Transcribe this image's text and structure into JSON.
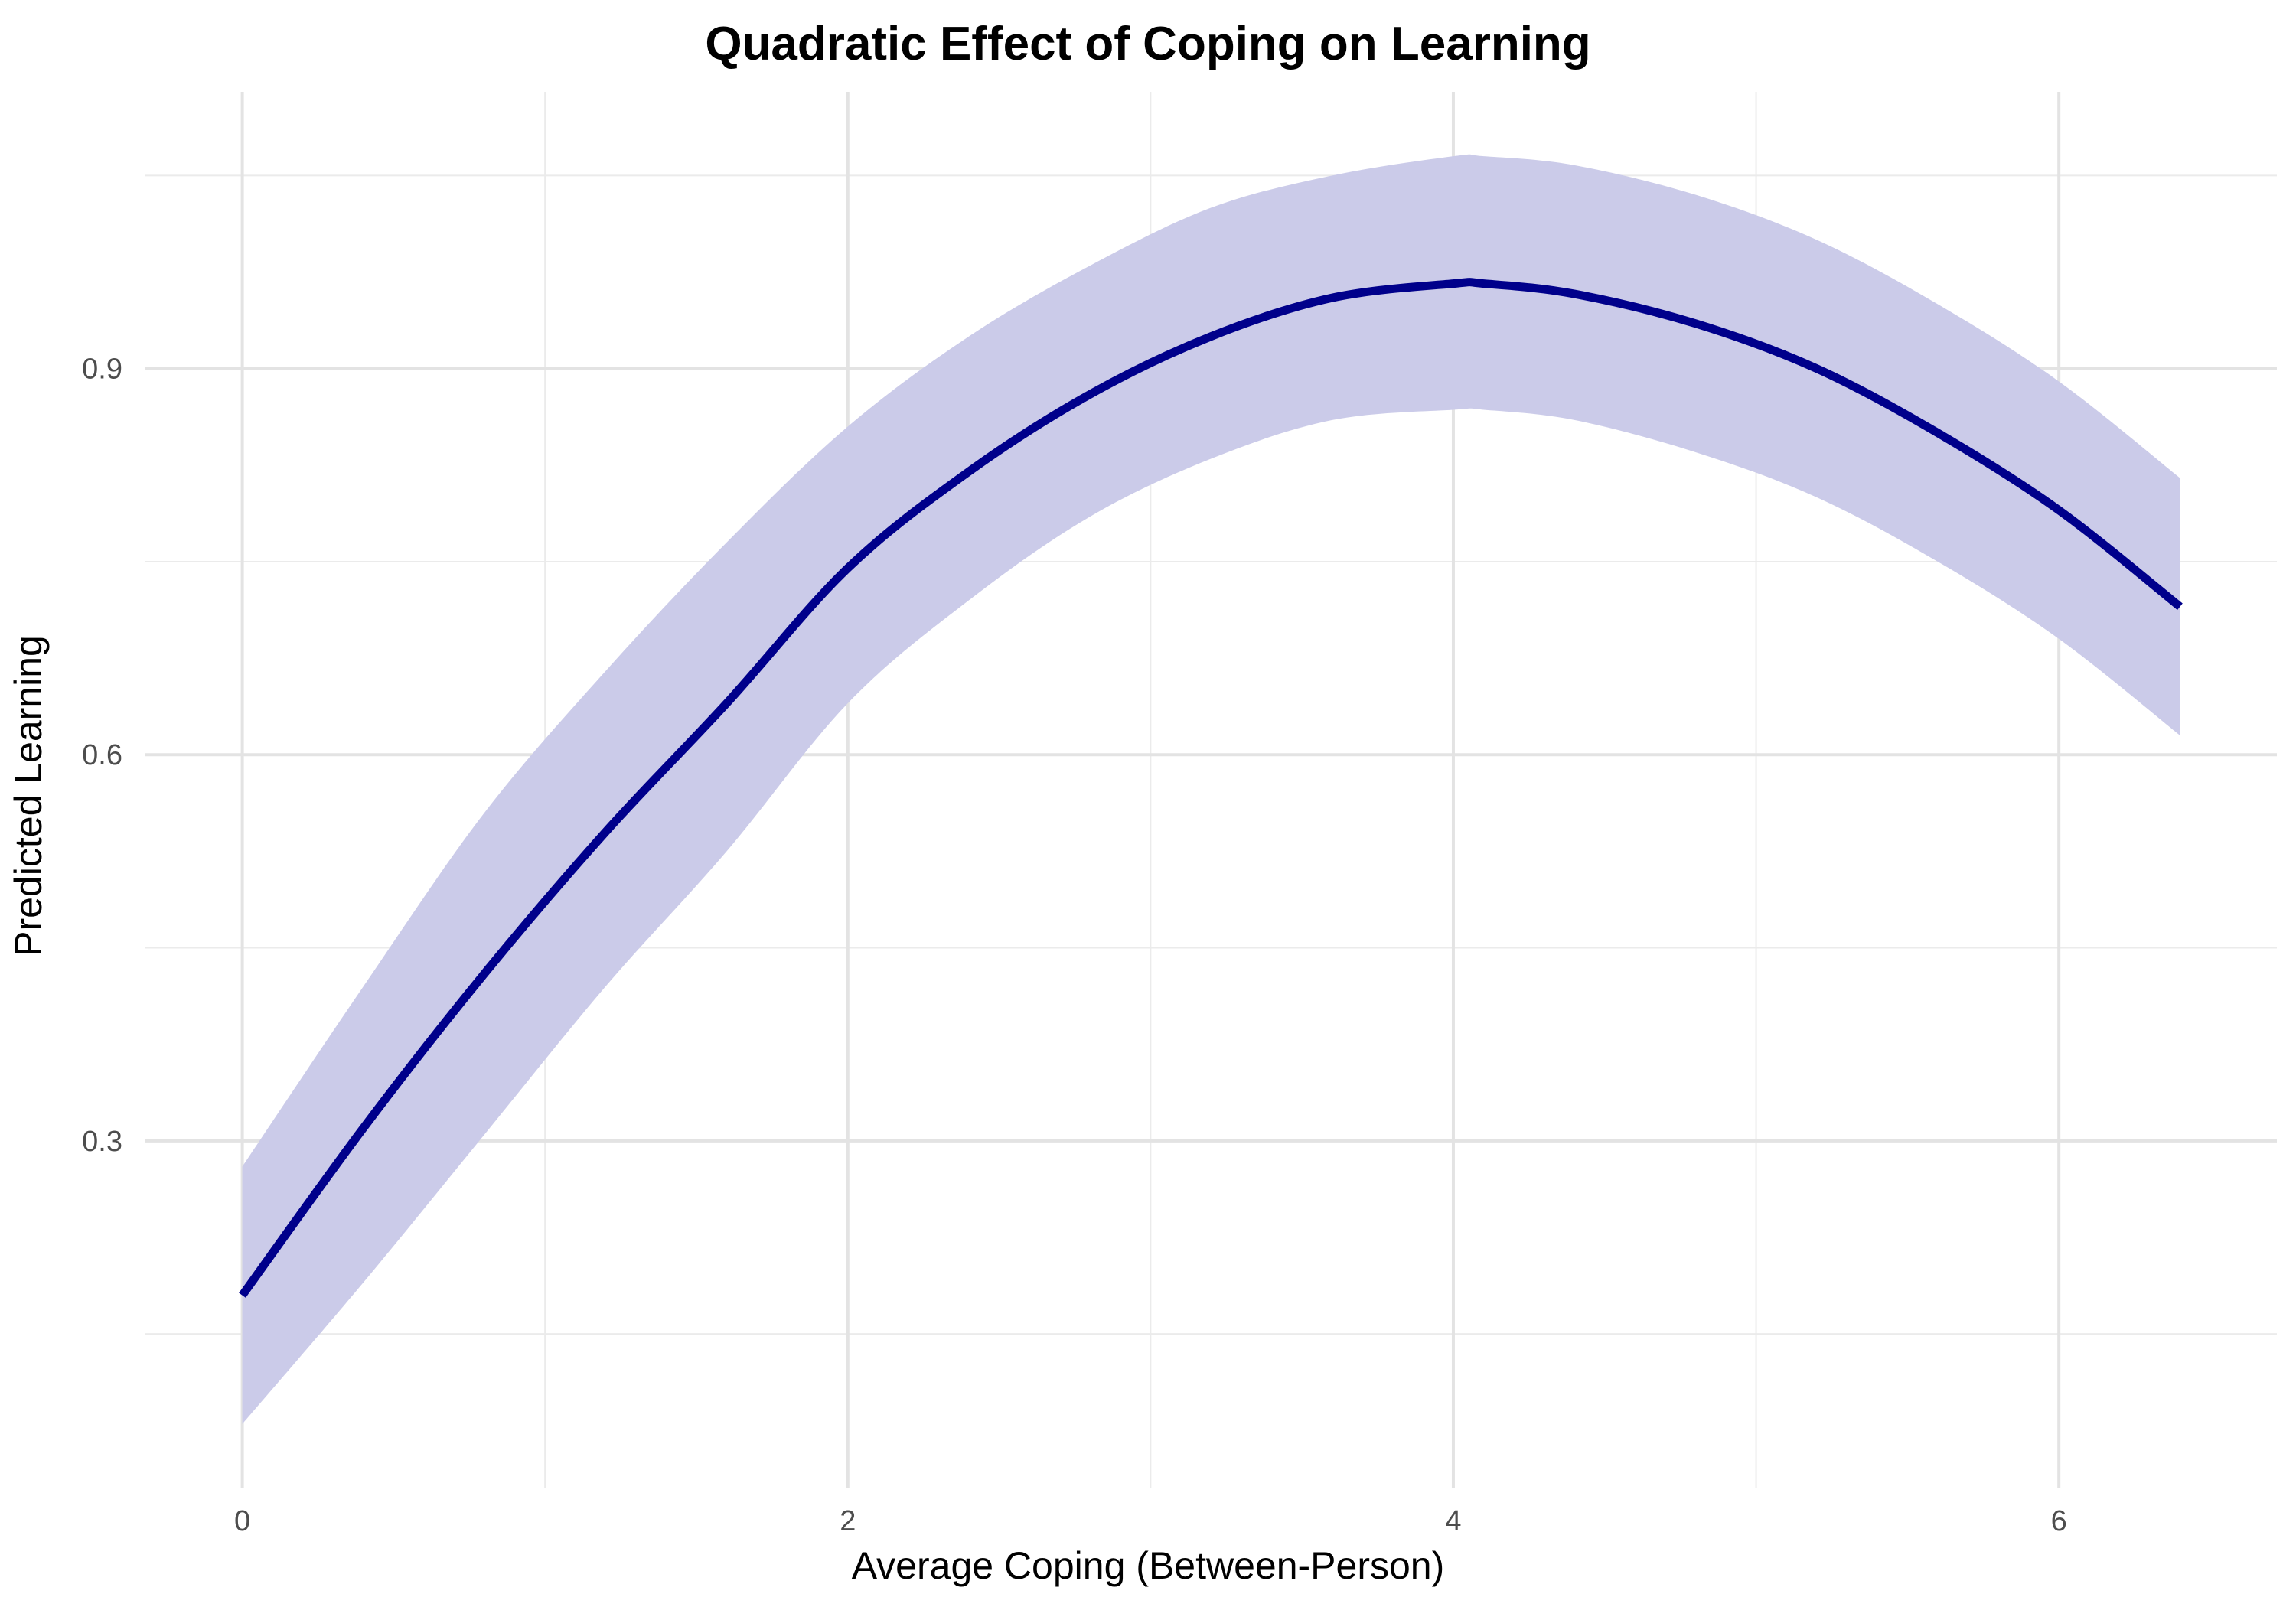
{
  "chart_data": {
    "type": "line",
    "title": "Quadratic Effect of Coping on Learning",
    "xlabel": "Average Coping (Between-Person)",
    "ylabel": "Predicted Learning",
    "xlim": [
      -0.32,
      6.72
    ],
    "ylim": [
      0.03,
      1.115
    ],
    "x_ticks": [
      0,
      2,
      4,
      6
    ],
    "x_tick_labels": [
      "0",
      "2",
      "4",
      "6"
    ],
    "y_ticks": [
      0.3,
      0.6,
      0.9
    ],
    "y_tick_labels": [
      "0.3",
      "0.6",
      "0.9"
    ],
    "x_minor_gridlines": [
      1,
      3,
      5
    ],
    "y_minor_gridlines": [
      0.15,
      0.45,
      0.75,
      1.05
    ],
    "grid": true,
    "legend": "none",
    "series": [
      {
        "kind": "line",
        "color": "#00008b",
        "x": [
          0,
          0.4,
          0.8,
          1.2,
          1.6,
          2.0,
          2.4,
          2.8,
          3.2,
          3.6,
          4.0,
          4.1,
          4.4,
          4.8,
          5.2,
          5.6,
          6.0,
          6.4
        ],
        "y": [
          0.18,
          0.31,
          0.43,
          0.54,
          0.64,
          0.745,
          0.82,
          0.88,
          0.925,
          0.955,
          0.966,
          0.966,
          0.958,
          0.935,
          0.9,
          0.85,
          0.79,
          0.715
        ]
      },
      {
        "kind": "ribbon",
        "color": "#cbcbe9",
        "x": [
          0,
          0.4,
          0.8,
          1.2,
          1.6,
          2.0,
          2.4,
          2.8,
          3.2,
          3.6,
          4.0,
          4.1,
          4.4,
          4.8,
          5.2,
          5.6,
          6.0,
          6.4
        ],
        "lower": [
          0.08,
          0.19,
          0.305,
          0.42,
          0.525,
          0.64,
          0.72,
          0.785,
          0.83,
          0.86,
          0.868,
          0.868,
          0.86,
          0.835,
          0.8,
          0.75,
          0.69,
          0.615
        ],
        "upper": [
          0.28,
          0.42,
          0.555,
          0.665,
          0.765,
          0.855,
          0.925,
          0.98,
          1.025,
          1.05,
          1.065,
          1.065,
          1.058,
          1.035,
          1.0,
          0.95,
          0.89,
          0.815
        ]
      }
    ]
  }
}
